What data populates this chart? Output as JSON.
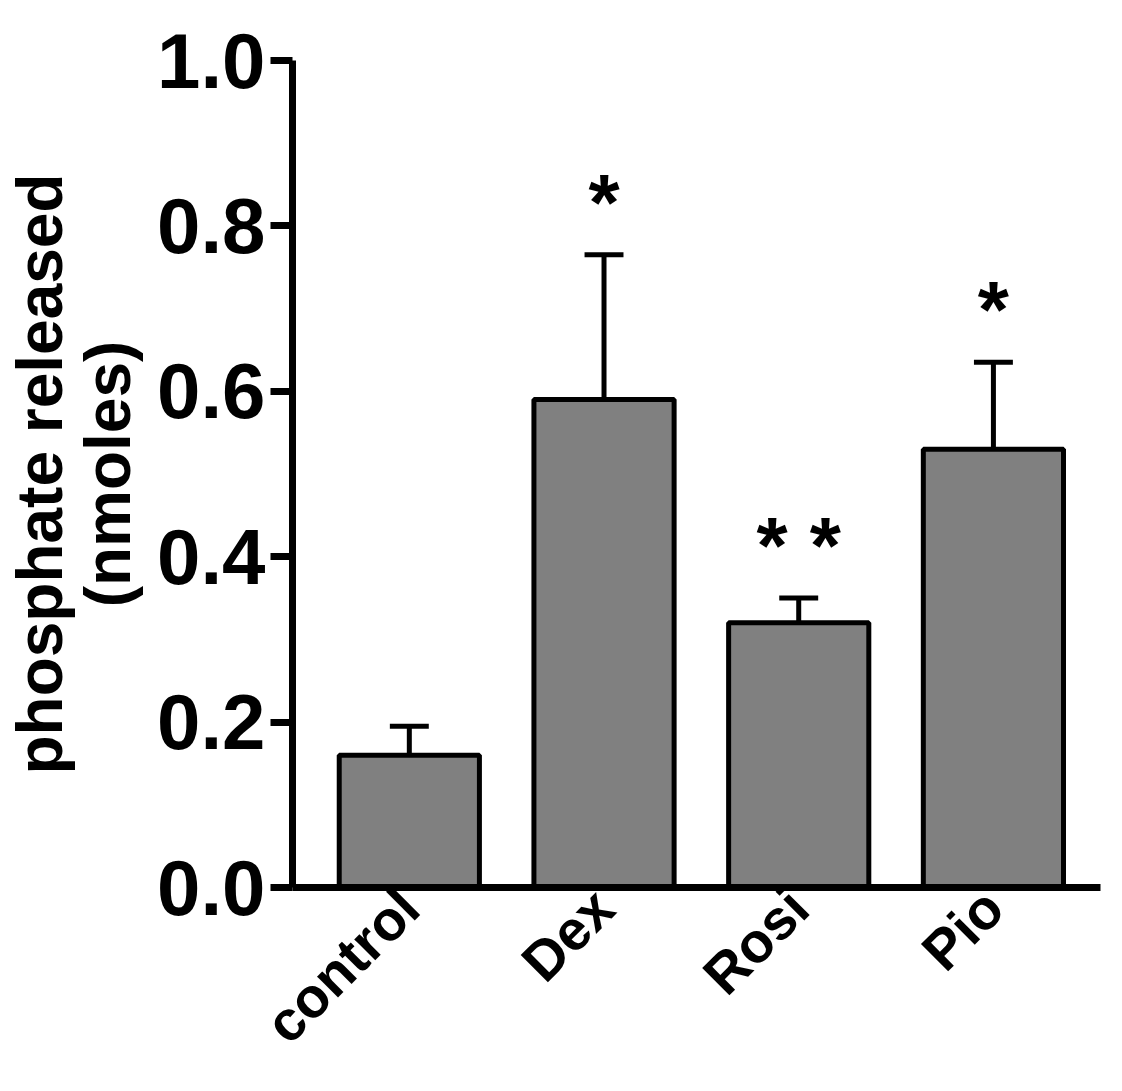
{
  "chart_data": {
    "type": "bar",
    "ylabel": "phosphate released (nmoles)",
    "categories": [
      "control",
      "Dex",
      "Rosi",
      "Pio"
    ],
    "values": [
      0.16,
      0.59,
      0.32,
      0.53
    ],
    "errors": [
      [
        0.16,
        0.195
      ],
      [
        0.59,
        0.765
      ],
      [
        0.32,
        0.35
      ],
      [
        0.53,
        0.635
      ]
    ],
    "color": "#808080",
    "ylim": [
      0,
      1.0
    ],
    "yticks": [
      {
        "value": 0,
        "label": "0.0"
      },
      {
        "value": 0.2,
        "label": "0.2"
      },
      {
        "value": 0.4,
        "label": "0.4"
      },
      {
        "value": 0.6,
        "label": "0.6"
      },
      {
        "value": 0.8,
        "label": "0.8"
      },
      {
        "value": 1.0,
        "label": "1.0"
      }
    ],
    "grid": false,
    "annotations": [
      {
        "text": "*",
        "x": "Dex",
        "y": 0.765
      },
      {
        "text": "* *",
        "x": "Rosi",
        "y": 0.35
      },
      {
        "text": "*",
        "x": "Pio",
        "y": 0.635
      }
    ]
  }
}
